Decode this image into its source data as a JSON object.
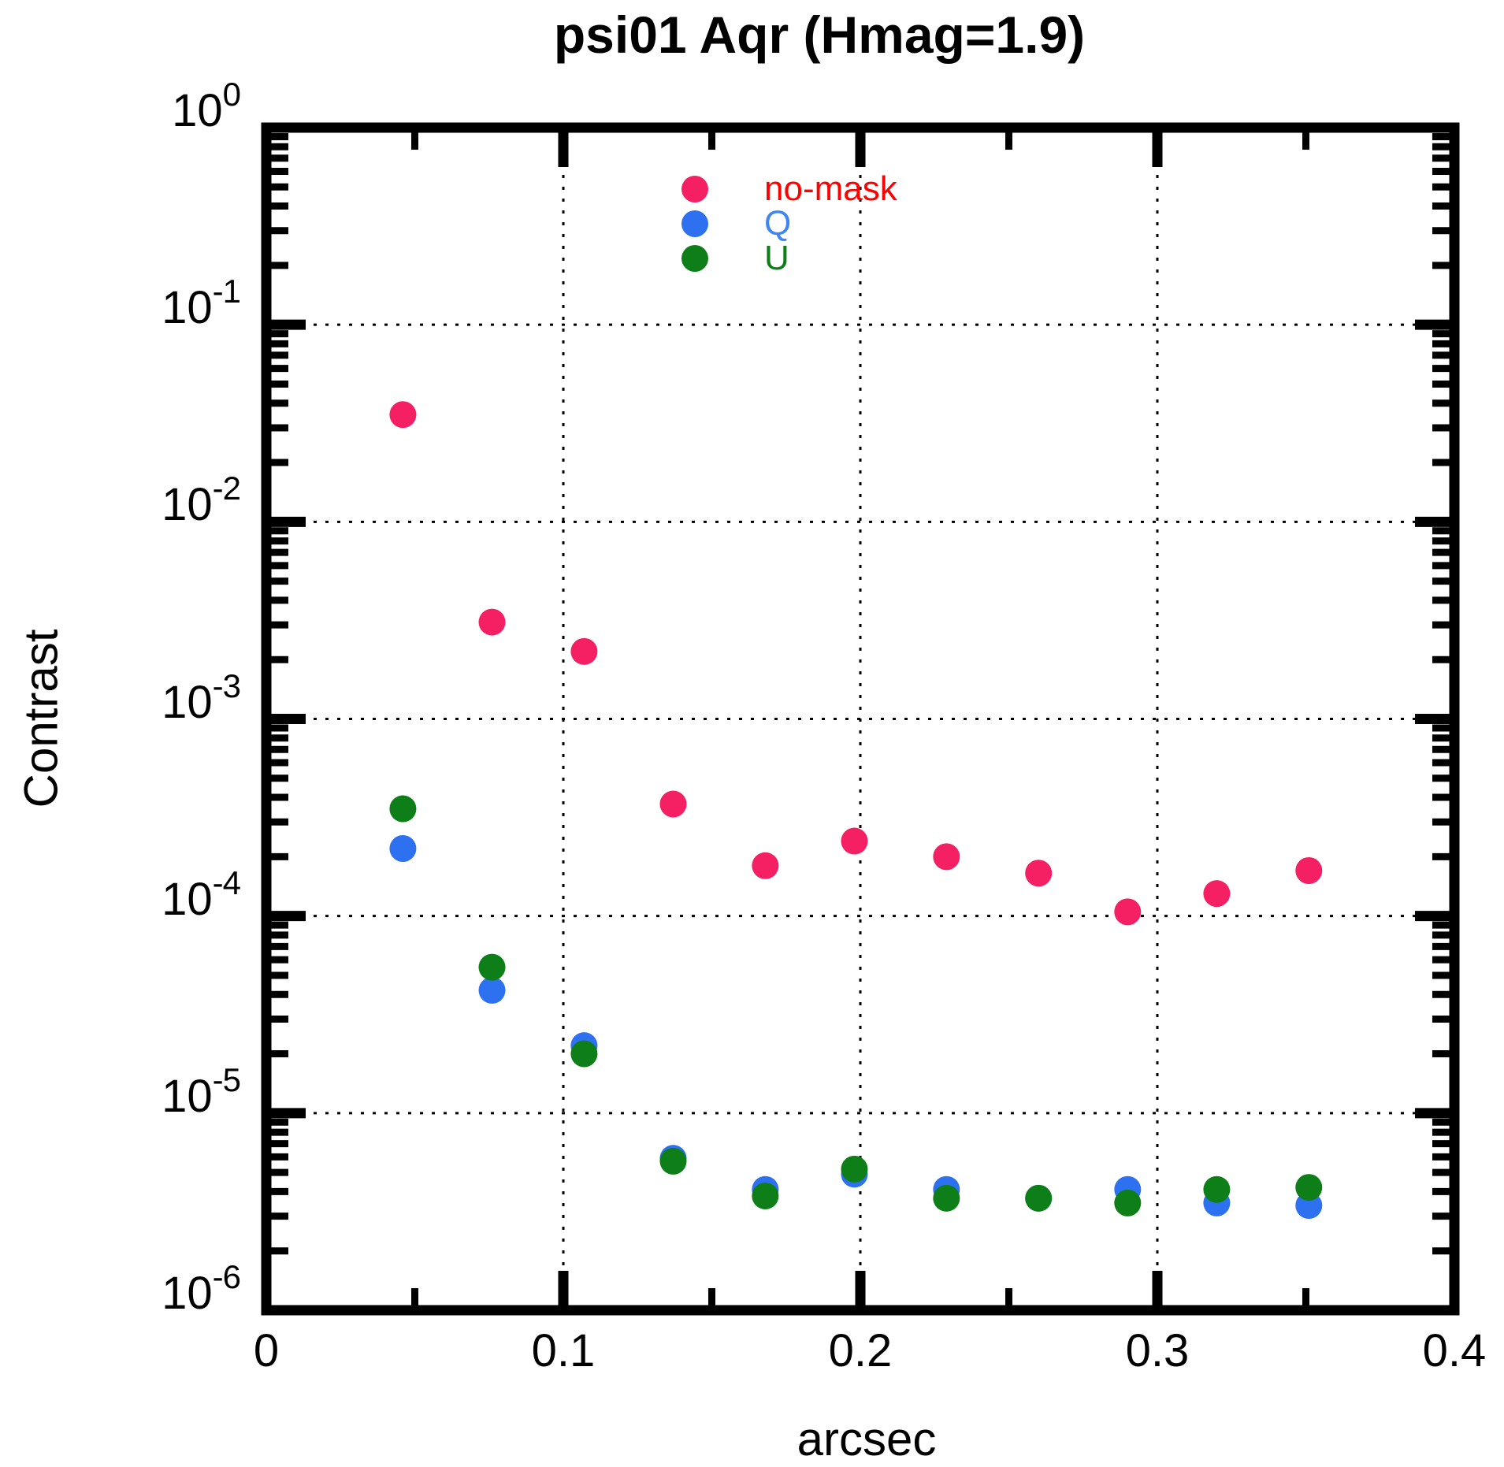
{
  "chart_data": {
    "type": "scatter",
    "title": "psi01 Aqr (Hmag=1.9)",
    "xlabel": "arcsec",
    "ylabel": "Contrast",
    "xlim": [
      0,
      0.4
    ],
    "y_top_exponent": 0,
    "y_bottom_exponent": -6,
    "x_major_ticks": [
      0,
      0.1,
      0.2,
      0.3,
      0.4
    ],
    "x_tick_labels": [
      "0",
      "0.1",
      "0.2",
      "0.3",
      "0.4"
    ],
    "x_minor_ticks": [
      0.05,
      0.15,
      0.25,
      0.35
    ],
    "y_tick_exponents": [
      0,
      -1,
      -2,
      -3,
      -4,
      -5,
      -6
    ],
    "grid_x": [
      0.1,
      0.2,
      0.3
    ],
    "grid_y_exponents": [
      -1,
      -2,
      -3,
      -4,
      -5
    ],
    "grid_on": true,
    "legend_position": "top-center-inside",
    "x_values": [
      0.046,
      0.076,
      0.107,
      0.137,
      0.168,
      0.198,
      0.229,
      0.26,
      0.29,
      0.32,
      0.351
    ],
    "series": [
      {
        "name": "no-mask",
        "marker_color": "#F42063",
        "label_color": "#FF0000",
        "y_values": [
          0.035,
          0.0031,
          0.0022,
          0.00037,
          0.00018,
          0.00024,
          0.0002,
          0.000165,
          0.000105,
          0.00013,
          0.00017
        ]
      },
      {
        "name": "Q",
        "marker_color": "#2E71F0",
        "label_color": "#3E86F2",
        "y_values": [
          0.00022,
          4.2e-05,
          2.2e-05,
          5.9e-06,
          4.1e-06,
          4.9e-06,
          4.1e-06,
          3.7e-06,
          4.1e-06,
          3.5e-06,
          3.4e-06
        ]
      },
      {
        "name": "U",
        "marker_color": "#0E7E18",
        "label_color": "#0E7E18",
        "y_values": [
          0.00035,
          5.5e-05,
          2e-05,
          5.7e-06,
          3.8e-06,
          5.2e-06,
          3.7e-06,
          3.7e-06,
          3.5e-06,
          4.1e-06,
          4.2e-06
        ]
      }
    ]
  }
}
